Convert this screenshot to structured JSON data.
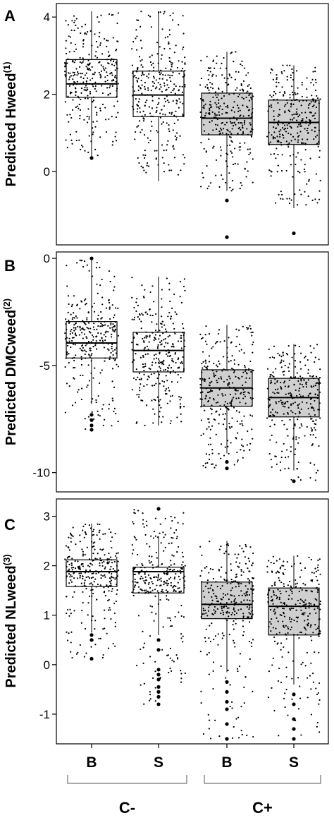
{
  "group_labels": {
    "categories": [
      "B",
      "S",
      "B",
      "S"
    ],
    "groups": [
      "C-",
      "C+"
    ]
  },
  "colors": {
    "box_c_minus": "#ffffff",
    "box_c_plus": "#cfcfcf",
    "ink": "#000000"
  },
  "chart_data": [
    {
      "type": "box",
      "panel_letter": "A",
      "ylabel_main": "Predicted Hweed",
      "ylabel_sup": "(1)",
      "ylim": [
        -1.9,
        4.35
      ],
      "yticks": [
        0,
        2,
        4
      ],
      "ytick_labels": [
        "0",
        "2",
        "4"
      ],
      "grid": false,
      "categories": [
        "B",
        "S",
        "B",
        "S"
      ],
      "series": [
        {
          "group": "C-",
          "category": "B",
          "q1": 1.92,
          "median": 2.27,
          "q3": 2.9,
          "whisker_low": 0.35,
          "whisker_high": 4.15,
          "outliers": [
            0.35
          ],
          "jitter_low": 0.3,
          "jitter_high": 4.15,
          "n_points": 300
        },
        {
          "group": "C-",
          "category": "S",
          "q1": 1.42,
          "median": 1.98,
          "q3": 2.6,
          "whisker_low": -0.25,
          "whisker_high": 4.15,
          "outliers": [],
          "jitter_low": -0.1,
          "jitter_high": 4.15,
          "n_points": 300
        },
        {
          "group": "C+",
          "category": "B",
          "q1": 0.95,
          "median": 1.38,
          "q3": 2.03,
          "whisker_low": -0.5,
          "whisker_high": 3.1,
          "outliers": [
            -0.75,
            -1.7,
            -1.7
          ],
          "jitter_low": -0.5,
          "jitter_high": 3.1,
          "n_points": 300
        },
        {
          "group": "C+",
          "category": "S",
          "q1": 0.7,
          "median": 1.27,
          "q3": 1.85,
          "whisker_low": -0.95,
          "whisker_high": 2.75,
          "outliers": [
            -1.6
          ],
          "jitter_low": -0.9,
          "jitter_high": 2.75,
          "n_points": 300
        }
      ]
    },
    {
      "type": "box",
      "panel_letter": "B",
      "ylabel_main": "Predicted DMCweed",
      "ylabel_sup": "(2)",
      "ylim": [
        -10.9,
        0.3
      ],
      "yticks": [
        0,
        -5,
        -10
      ],
      "ytick_labels": [
        "0",
        "-5",
        "-10"
      ],
      "grid": false,
      "categories": [
        "B",
        "S",
        "B",
        "S"
      ],
      "series": [
        {
          "group": "C-",
          "category": "B",
          "q1": -4.65,
          "median": -3.95,
          "q3": -2.95,
          "whisker_low": -6.8,
          "whisker_high": -0.05,
          "outliers": [
            -7.3,
            -7.55,
            -7.8,
            -8.0,
            0.0
          ],
          "jitter_low": -8.0,
          "jitter_high": 0.0,
          "n_points": 300
        },
        {
          "group": "C-",
          "category": "S",
          "q1": -5.3,
          "median": -4.3,
          "q3": -3.45,
          "whisker_low": -7.8,
          "whisker_high": -0.85,
          "outliers": [],
          "jitter_low": -7.8,
          "jitter_high": -0.85,
          "n_points": 300
        },
        {
          "group": "C+",
          "category": "B",
          "q1": -6.9,
          "median": -6.05,
          "q3": -5.2,
          "whisker_low": -9.1,
          "whisker_high": -3.1,
          "outliers": [
            -9.5,
            -9.8
          ],
          "jitter_low": -9.8,
          "jitter_high": -3.1,
          "n_points": 300
        },
        {
          "group": "C+",
          "category": "S",
          "q1": -7.4,
          "median": -6.5,
          "q3": -5.6,
          "whisker_low": -9.9,
          "whisker_high": -4.0,
          "outliers": [
            -10.4
          ],
          "jitter_low": -10.4,
          "jitter_high": -4.0,
          "n_points": 300
        }
      ]
    },
    {
      "type": "box",
      "panel_letter": "C",
      "ylabel_main": "Predicted NLweed",
      "ylabel_sup": "(3)",
      "ylim": [
        -1.6,
        3.35
      ],
      "yticks": [
        3,
        2,
        1,
        0,
        -1
      ],
      "ytick_labels": [
        "3",
        "2",
        "1",
        "0",
        "-1"
      ],
      "grid": false,
      "categories": [
        "B",
        "S",
        "B",
        "S"
      ],
      "series": [
        {
          "group": "C-",
          "category": "B",
          "q1": 1.58,
          "median": 1.88,
          "q3": 2.12,
          "whisker_low": 0.65,
          "whisker_high": 2.85,
          "outliers": [
            0.6,
            0.5,
            0.12
          ],
          "jitter_low": 0.12,
          "jitter_high": 2.85,
          "n_points": 300
        },
        {
          "group": "C-",
          "category": "S",
          "q1": 1.45,
          "median": 1.88,
          "q3": 1.97,
          "whisker_low": 0.6,
          "whisker_high": 2.6,
          "outliers": [
            3.15,
            0.5,
            0.3,
            -0.1,
            -0.2,
            -0.3,
            -0.45,
            -0.55,
            -0.65,
            -0.8
          ],
          "jitter_low": -0.8,
          "jitter_high": 3.15,
          "n_points": 300
        },
        {
          "group": "C+",
          "category": "B",
          "q1": 0.93,
          "median": 1.22,
          "q3": 1.67,
          "whisker_low": -0.15,
          "whisker_high": 2.5,
          "outliers": [
            -0.35,
            -0.55,
            -0.75,
            -0.9,
            -1.2,
            -1.5
          ],
          "jitter_low": -1.5,
          "jitter_high": 2.5,
          "n_points": 300
        },
        {
          "group": "C+",
          "category": "S",
          "q1": 0.6,
          "median": 1.18,
          "q3": 1.55,
          "whisker_low": -0.4,
          "whisker_high": 2.2,
          "outliers": [
            -0.6,
            -0.8,
            -1.1,
            -1.3,
            -1.5
          ],
          "jitter_low": -1.5,
          "jitter_high": 2.2,
          "n_points": 300
        }
      ]
    }
  ]
}
